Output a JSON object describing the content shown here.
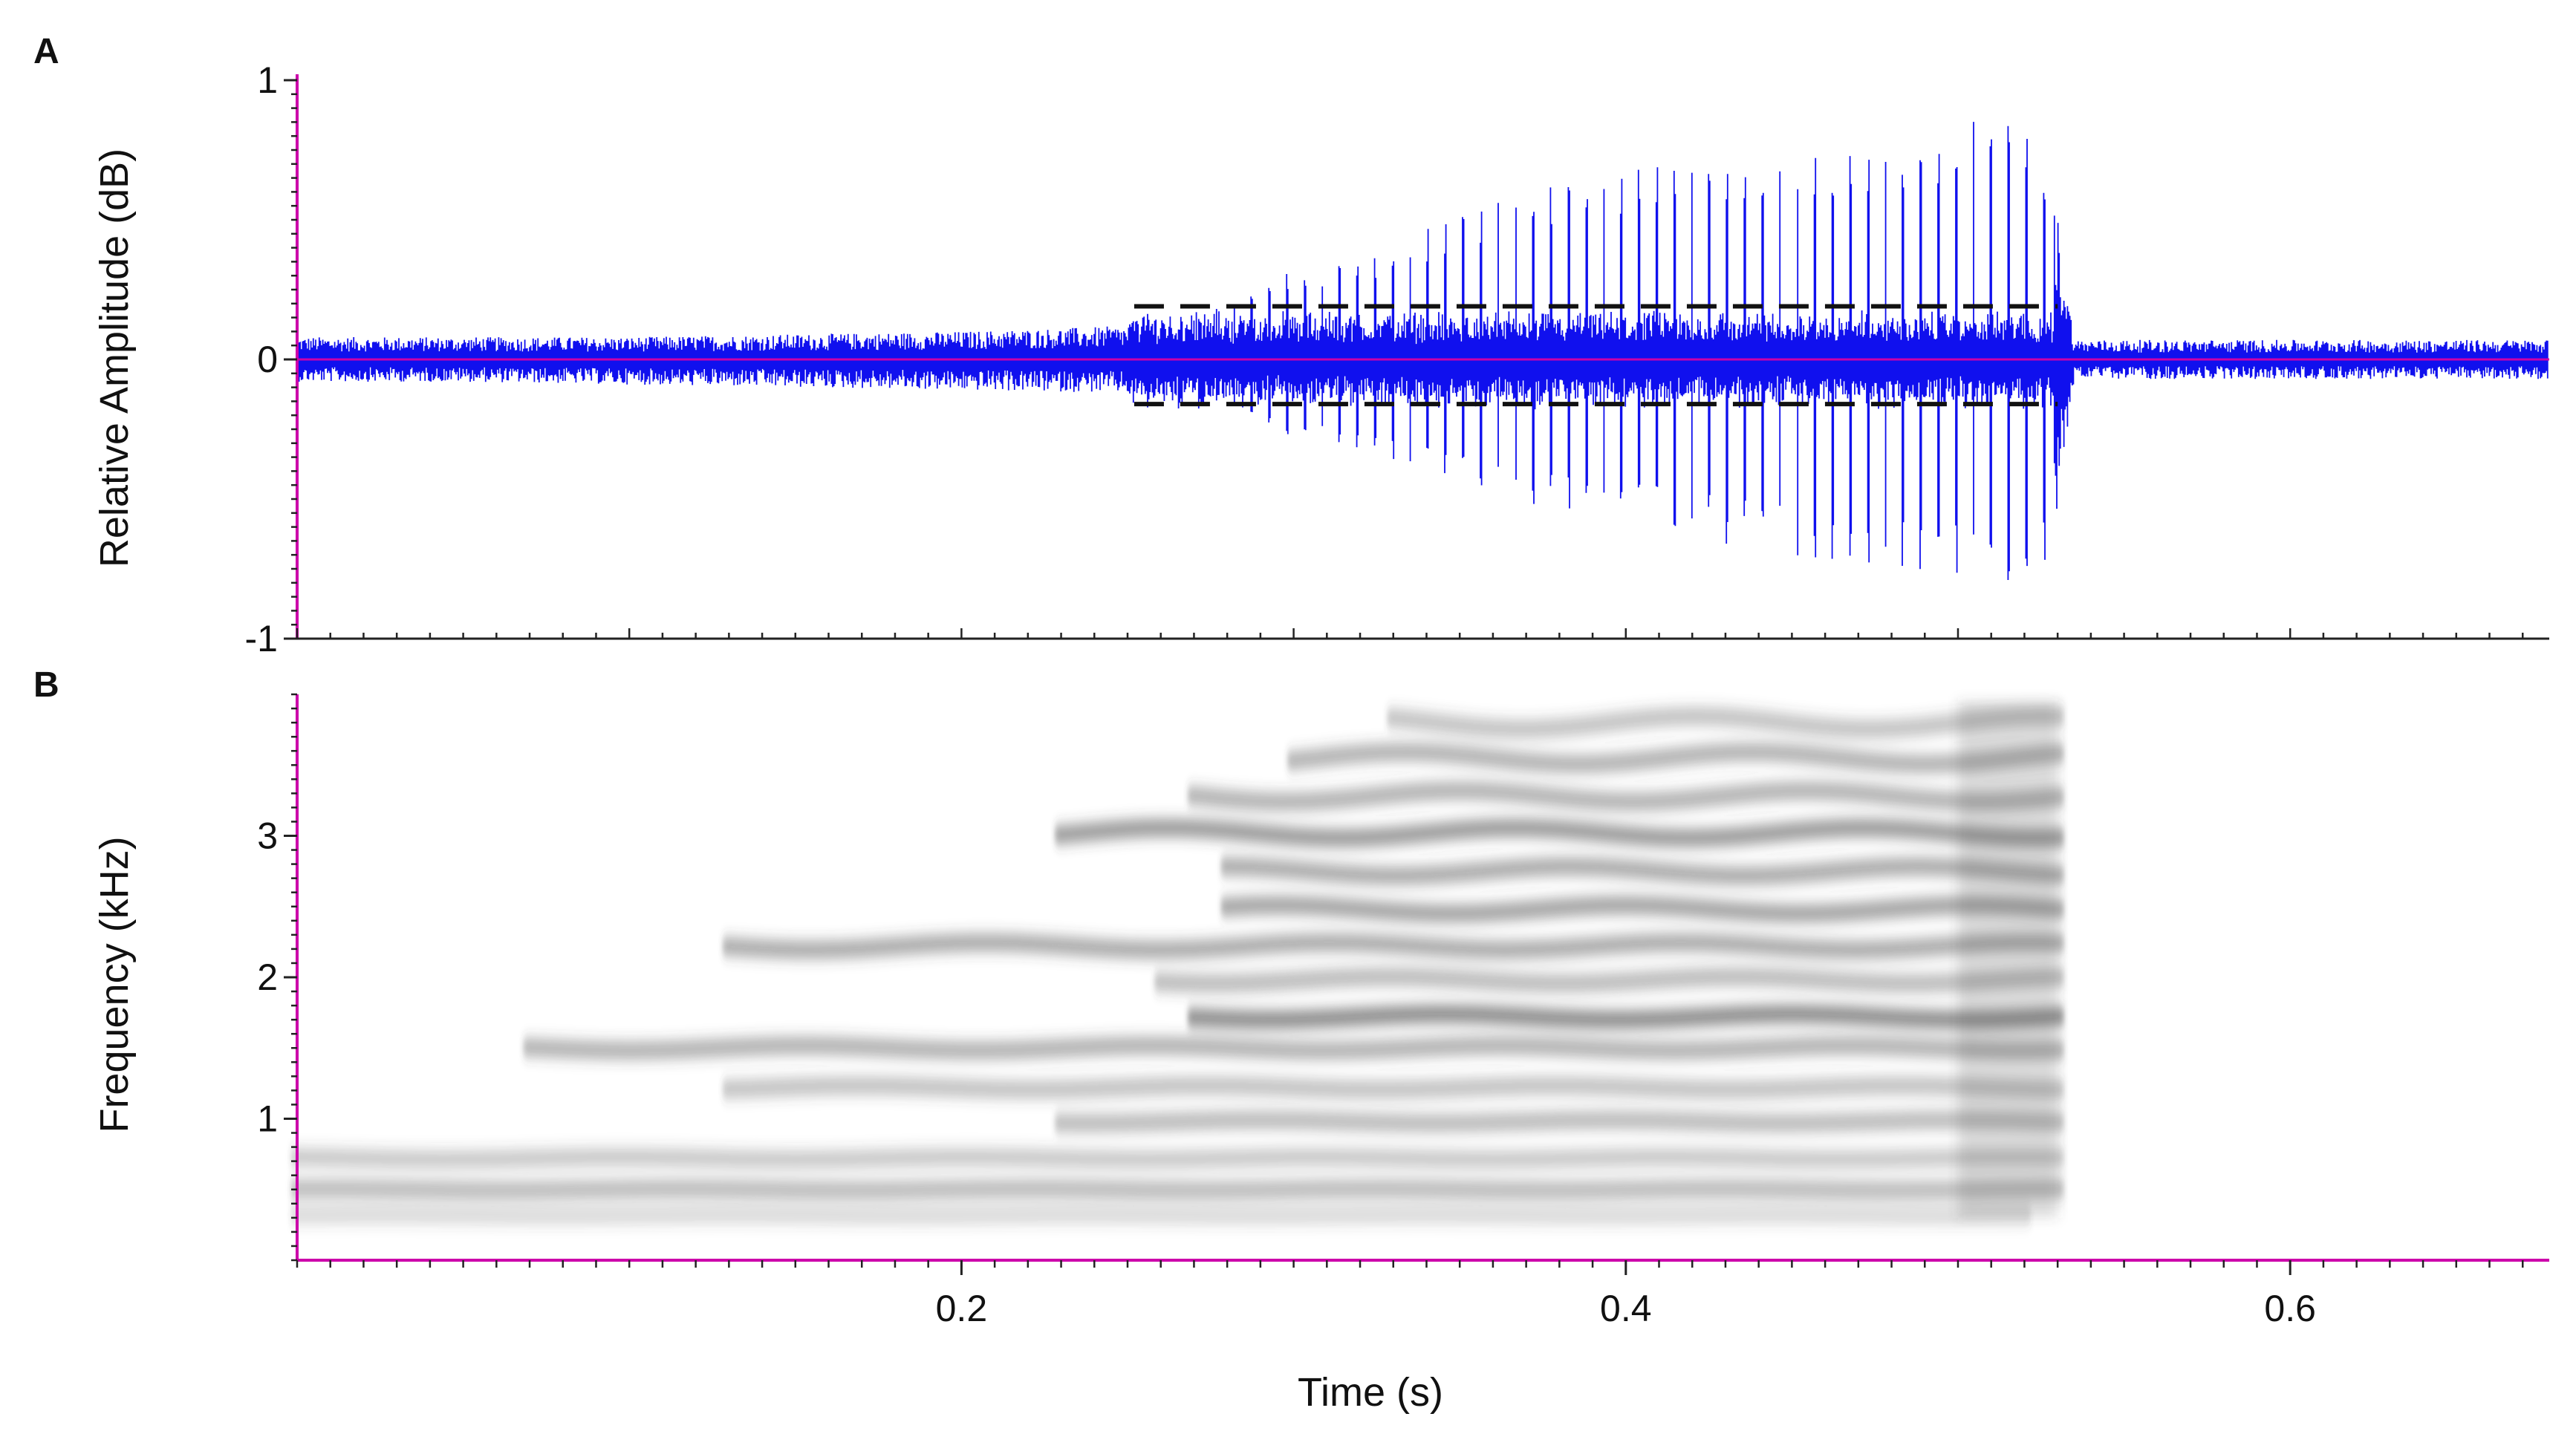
{
  "panels": {
    "a_label": "A",
    "b_label": "B"
  },
  "axes": {
    "waveform_ylabel": "Relative Amplitude (dB)",
    "spectrogram_ylabel": "Frequency (kHz)",
    "xlabel": "Time (s)"
  },
  "colors": {
    "waveform": "#1010ee",
    "axis": "#cc00aa",
    "envelope": "#111111",
    "spectrogram_ink": "#444444",
    "background": "#ffffff"
  },
  "chart_data": [
    {
      "type": "line",
      "panel": "A",
      "xlabel": "",
      "ylabel": "Relative Amplitude (dB)",
      "xlim": [
        0.0,
        0.678
      ],
      "ylim": [
        -1,
        1
      ],
      "yticks": [
        {
          "value": 1,
          "label": "1"
        },
        {
          "value": 0,
          "label": "0"
        },
        {
          "value": -1,
          "label": "-1"
        }
      ],
      "envelope_points": {
        "t": [
          0.0,
          0.05,
          0.1,
          0.15,
          0.2,
          0.25,
          0.28,
          0.3,
          0.32,
          0.35,
          0.37,
          0.4,
          0.43,
          0.46,
          0.48,
          0.5,
          0.51,
          0.52,
          0.528,
          0.535,
          0.6,
          0.678
        ],
        "max": [
          0.08,
          0.08,
          0.08,
          0.09,
          0.1,
          0.12,
          0.2,
          0.32,
          0.36,
          0.52,
          0.6,
          0.68,
          0.72,
          0.75,
          0.8,
          0.85,
          0.9,
          0.88,
          0.7,
          0.07,
          0.07,
          0.07
        ],
        "min": [
          -0.08,
          -0.08,
          -0.09,
          -0.1,
          -0.11,
          -0.12,
          -0.2,
          -0.28,
          -0.34,
          -0.45,
          -0.52,
          -0.58,
          -0.66,
          -0.72,
          -0.75,
          -0.78,
          -0.83,
          -0.8,
          -0.7,
          -0.07,
          -0.07,
          -0.07
        ]
      },
      "threshold_lines": [
        {
          "value": 0.19,
          "t_start": 0.252,
          "t_end": 0.53,
          "style": "dashed"
        },
        {
          "value": -0.16,
          "t_start": 0.252,
          "t_end": 0.53,
          "style": "dashed"
        }
      ]
    },
    {
      "type": "heatmap",
      "panel": "B",
      "xlabel": "Time (s)",
      "ylabel": "Frequency (kHz)",
      "xlim": [
        0.0,
        0.678
      ],
      "ylim": [
        0.0,
        4.0
      ],
      "xticks": [
        {
          "value": 0.2,
          "label": "0.2"
        },
        {
          "value": 0.4,
          "label": "0.4"
        },
        {
          "value": 0.6,
          "label": "0.6"
        }
      ],
      "yticks": [
        {
          "value": 1,
          "label": "1"
        },
        {
          "value": 2,
          "label": "2"
        },
        {
          "value": 3,
          "label": "3"
        }
      ],
      "harmonic_bands": [
        {
          "freq": 0.32,
          "t_start": 0.0,
          "t_end": 0.52,
          "intensity": 0.25
        },
        {
          "freq": 0.5,
          "t_start": 0.0,
          "t_end": 0.53,
          "intensity": 0.45
        },
        {
          "freq": 0.72,
          "t_start": 0.0,
          "t_end": 0.53,
          "intensity": 0.35
        },
        {
          "freq": 0.98,
          "t_start": 0.23,
          "t_end": 0.53,
          "intensity": 0.45
        },
        {
          "freq": 1.22,
          "t_start": 0.13,
          "t_end": 0.53,
          "intensity": 0.4
        },
        {
          "freq": 1.5,
          "t_start": 0.07,
          "t_end": 0.53,
          "intensity": 0.5
        },
        {
          "freq": 1.72,
          "t_start": 0.27,
          "t_end": 0.53,
          "intensity": 0.75
        },
        {
          "freq": 1.98,
          "t_start": 0.26,
          "t_end": 0.53,
          "intensity": 0.45
        },
        {
          "freq": 2.22,
          "t_start": 0.13,
          "t_end": 0.53,
          "intensity": 0.55
        },
        {
          "freq": 2.48,
          "t_start": 0.28,
          "t_end": 0.53,
          "intensity": 0.6
        },
        {
          "freq": 2.75,
          "t_start": 0.28,
          "t_end": 0.53,
          "intensity": 0.55
        },
        {
          "freq": 3.02,
          "t_start": 0.23,
          "t_end": 0.53,
          "intensity": 0.65
        },
        {
          "freq": 3.28,
          "t_start": 0.27,
          "t_end": 0.53,
          "intensity": 0.5
        },
        {
          "freq": 3.55,
          "t_start": 0.3,
          "t_end": 0.53,
          "intensity": 0.5
        },
        {
          "freq": 3.8,
          "t_start": 0.33,
          "t_end": 0.53,
          "intensity": 0.4
        }
      ]
    }
  ]
}
